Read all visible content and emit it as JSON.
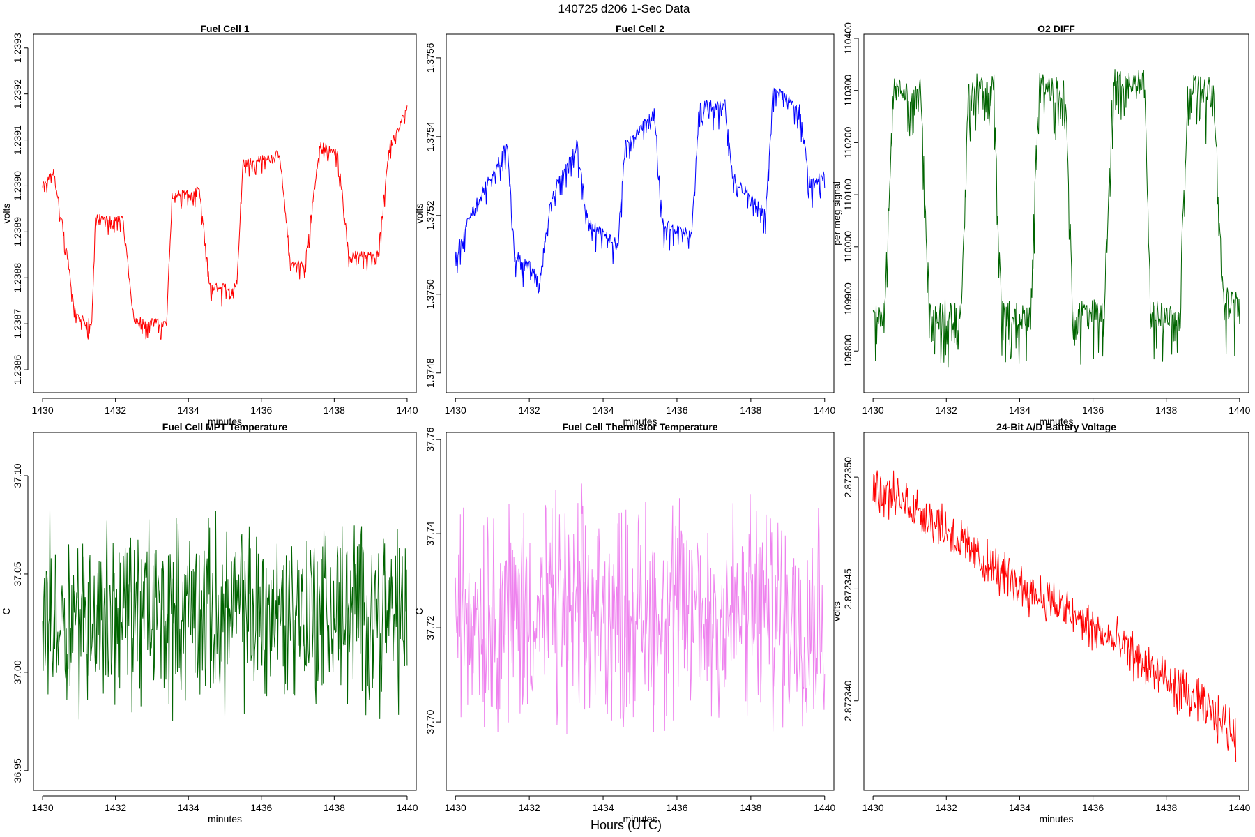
{
  "figure": {
    "title": "140725   d206   1-Sec Data",
    "footer_label": "Hours (UTC)"
  },
  "chart_data": [
    {
      "type": "line",
      "title": "Fuel Cell 1",
      "xlabel": "minutes",
      "ylabel": "volts",
      "color": "#ff0000",
      "xlim": [
        1429.75,
        1440.25
      ],
      "ylim": [
        1.23855,
        1.23933
      ],
      "xticks": [
        1430,
        1432,
        1434,
        1436,
        1438,
        1440
      ],
      "xtick_labels": [
        "1430",
        "1432",
        "1434",
        "1436",
        "1438",
        "1440"
      ],
      "yticks": [
        1.2386,
        1.2387,
        1.2388,
        1.2389,
        1.239,
        1.2391,
        1.2392,
        1.2393
      ],
      "ytick_labels": [
        "1.2386",
        "1.2387",
        "1.2388",
        "1.2389",
        "1.2390",
        "1.2391",
        "1.2392",
        "1.2393"
      ],
      "series": [
        {
          "name": "Fuel Cell 1",
          "x": [
            1430,
            1430.3,
            1430.6,
            1430.9,
            1431.35,
            1431.45,
            1432.2,
            1432.5,
            1433.4,
            1433.55,
            1434.3,
            1434.6,
            1435.3,
            1435.5,
            1436.5,
            1436.8,
            1437.2,
            1437.6,
            1438.1,
            1438.4,
            1439.2,
            1439.5,
            1440
          ],
          "y": [
            1.239,
            1.23903,
            1.23889,
            1.23872,
            1.2387,
            1.23893,
            1.23893,
            1.23871,
            1.2387,
            1.23898,
            1.23899,
            1.23878,
            1.23878,
            1.23905,
            1.23907,
            1.23883,
            1.23883,
            1.23909,
            1.23907,
            1.23885,
            1.23885,
            1.23908,
            1.23917
          ]
        }
      ]
    },
    {
      "type": "line",
      "title": "Fuel Cell 2",
      "xlabel": "minutes",
      "ylabel": "volts",
      "color": "#0000ff",
      "xlim": [
        1429.75,
        1440.25
      ],
      "ylim": [
        1.37475,
        1.37566
      ],
      "xticks": [
        1430,
        1432,
        1434,
        1436,
        1438,
        1440
      ],
      "xtick_labels": [
        "1430",
        "1432",
        "1434",
        "1436",
        "1438",
        "1440"
      ],
      "yticks": [
        1.3748,
        1.375,
        1.3752,
        1.3754,
        1.3756
      ],
      "ytick_labels": [
        "1.3748",
        "1.3750",
        "1.3752",
        "1.3754",
        "1.3756"
      ],
      "series": [
        {
          "name": "Fuel Cell 2",
          "x": [
            1430,
            1430.4,
            1431.4,
            1431.6,
            1432.3,
            1432.6,
            1433.3,
            1433.6,
            1434.4,
            1434.6,
            1435.4,
            1435.6,
            1436.4,
            1436.6,
            1437.3,
            1437.5,
            1438.4,
            1438.6,
            1439.3,
            1439.6,
            1440
          ],
          "y": [
            1.3751,
            1.3752,
            1.37538,
            1.3751,
            1.37505,
            1.37525,
            1.37538,
            1.37518,
            1.37513,
            1.37538,
            1.37546,
            1.37518,
            1.37515,
            1.37548,
            1.37548,
            1.3753,
            1.3752,
            1.37552,
            1.37548,
            1.37528,
            1.3753
          ]
        }
      ]
    },
    {
      "type": "line",
      "title": "O2 DIFF",
      "xlabel": "minutes",
      "ylabel": "per meg signal",
      "color": "#006400",
      "xlim": [
        1429.75,
        1440.25
      ],
      "ylim": [
        109720,
        110408
      ],
      "xticks": [
        1430,
        1432,
        1434,
        1436,
        1438,
        1440
      ],
      "xtick_labels": [
        "1430",
        "1432",
        "1434",
        "1436",
        "1438",
        "1440"
      ],
      "yticks": [
        109800,
        109900,
        110000,
        110100,
        110200,
        110300,
        110400
      ],
      "ytick_labels": [
        "109800",
        "109900",
        "110000",
        "110100",
        "110200",
        "110300",
        "110400"
      ],
      "series": [
        {
          "name": "O2 DIFF",
          "x": [
            1430,
            1430.3,
            1430.55,
            1431.3,
            1431.55,
            1432.4,
            1432.6,
            1433.3,
            1433.5,
            1434.3,
            1434.5,
            1435.25,
            1435.45,
            1436.3,
            1436.55,
            1437.4,
            1437.6,
            1438.35,
            1438.6,
            1439.3,
            1439.55,
            1440
          ],
          "y": [
            109870,
            109870,
            110300,
            110300,
            109880,
            109870,
            110310,
            110310,
            109880,
            109860,
            110310,
            110300,
            109880,
            109875,
            110320,
            110320,
            109875,
            109860,
            110315,
            110300,
            109900,
            109890
          ]
        }
      ]
    },
    {
      "type": "line",
      "title": "Fuel Cell MPT Temperature",
      "xlabel": "minutes",
      "ylabel": "C",
      "color": "#006400",
      "xlim": [
        1429.75,
        1440.25
      ],
      "ylim": [
        36.94,
        37.122
      ],
      "xticks": [
        1430,
        1432,
        1434,
        1436,
        1438,
        1440
      ],
      "xtick_labels": [
        "1430",
        "1432",
        "1434",
        "1436",
        "1438",
        "1440"
      ],
      "yticks": [
        36.95,
        37.0,
        37.05,
        37.1
      ],
      "ytick_labels": [
        "36.95",
        "37.00",
        "37.05",
        "37.10"
      ],
      "series": [
        {
          "name": "MPT Temperature",
          "x": [
            1430,
            1440
          ],
          "y": [
            37.03,
            37.03
          ]
        }
      ]
    },
    {
      "type": "line",
      "title": "Fuel Cell Thermistor Temperature",
      "xlabel": "minutes",
      "ylabel": "C",
      "color": "#ee82ee",
      "xlim": [
        1429.75,
        1440.25
      ],
      "ylim": [
        37.6855,
        37.7615
      ],
      "xticks": [
        1430,
        1432,
        1434,
        1436,
        1438,
        1440
      ],
      "xtick_labels": [
        "1430",
        "1432",
        "1434",
        "1436",
        "1438",
        "1440"
      ],
      "yticks": [
        37.7,
        37.72,
        37.74,
        37.76
      ],
      "ytick_labels": [
        "37.70",
        "37.72",
        "37.74",
        "37.76"
      ],
      "series": [
        {
          "name": "Thermistor Temperature",
          "x": [
            1430,
            1440
          ],
          "y": [
            37.723,
            37.723
          ]
        }
      ]
    },
    {
      "type": "line",
      "title": "24-Bit A/D Battery Voltage",
      "xlabel": "minutes",
      "ylabel": "volts",
      "color": "#ff0000",
      "xlim": [
        1429.75,
        1440.25
      ],
      "ylim": [
        2.872336,
        2.872352
      ],
      "xticks": [
        1430,
        1432,
        1434,
        1436,
        1438,
        1440
      ],
      "xtick_labels": [
        "1430",
        "1432",
        "1434",
        "1436",
        "1438",
        "1440"
      ],
      "yticks": [
        2.87234,
        2.872345,
        2.87235
      ],
      "ytick_labels": [
        "2.872340",
        "2.872345",
        "2.872350"
      ],
      "series": [
        {
          "name": "Battery Voltage",
          "x": [
            1430,
            1431,
            1432,
            1433,
            1434,
            1435,
            1436,
            1437,
            1438,
            1439,
            1439.9
          ],
          "y": [
            2.8723495,
            2.8723488,
            2.8723477,
            2.8723462,
            2.8723452,
            2.8723443,
            2.8723432,
            2.8723422,
            2.8723408,
            2.8723398,
            2.8723385
          ]
        }
      ]
    }
  ]
}
